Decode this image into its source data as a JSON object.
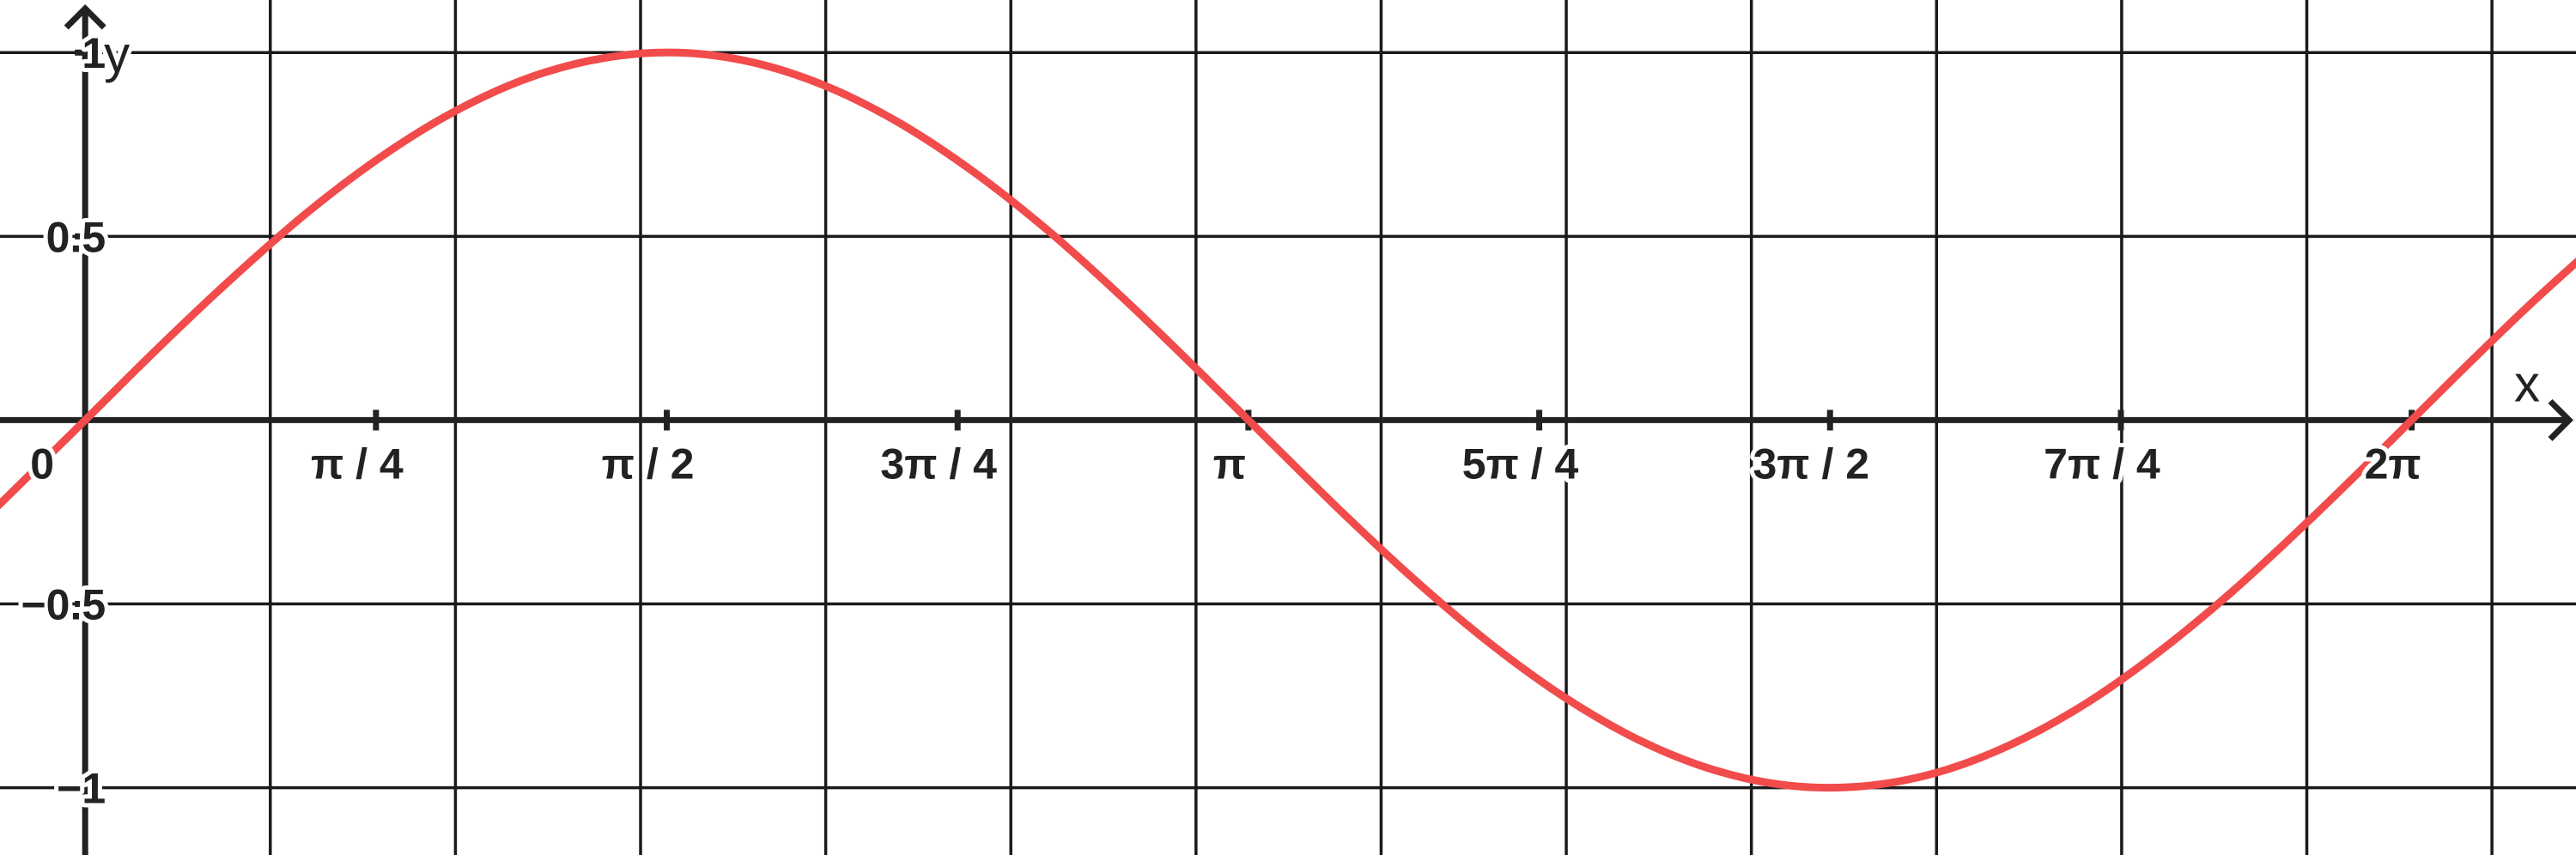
{
  "chart_data": {
    "type": "line",
    "x_label": "x",
    "y_label": "y",
    "x": [
      -0.24,
      0,
      0.2,
      0.4,
      0.6,
      0.8,
      1.0,
      1.2,
      1.4,
      1.6,
      1.8,
      2.0,
      2.2,
      2.4,
      2.6,
      2.8,
      3.0,
      3.2,
      3.4,
      3.6,
      3.8,
      4.0,
      4.2,
      4.4,
      4.6,
      4.8,
      5.0,
      5.2,
      5.4,
      5.6,
      5.8,
      6.0,
      6.2,
      6.4,
      6.6,
      6.8
    ],
    "values": [
      -0.238,
      0,
      0.199,
      0.389,
      0.565,
      0.717,
      0.841,
      0.932,
      0.985,
      1.0,
      0.974,
      0.909,
      0.808,
      0.675,
      0.516,
      0.335,
      0.141,
      -0.058,
      -0.256,
      -0.443,
      -0.612,
      -0.757,
      -0.872,
      -0.952,
      -0.994,
      -0.996,
      -0.959,
      -0.883,
      -0.773,
      -0.631,
      -0.465,
      -0.279,
      -0.083,
      0.117,
      0.312,
      0.494
    ],
    "color": "#f24b4b",
    "xlim": [
      -0.23,
      6.727
    ],
    "ylim": [
      -1.183,
      1.143
    ],
    "xticks": [
      0,
      {
        "value": 0.785398,
        "label": "π / 4"
      },
      {
        "value": 1.570796,
        "label": "π / 2"
      },
      {
        "value": 2.356194,
        "label": "3π / 4"
      },
      {
        "value": 3.141593,
        "label": "π"
      },
      {
        "value": 3.926991,
        "label": "5π / 4"
      },
      {
        "value": 4.712389,
        "label": "3π / 2"
      },
      {
        "value": 5.497787,
        "label": "7π / 4"
      },
      {
        "value": 6.283185,
        "label": "2π"
      }
    ],
    "yticks": [
      {
        "value": -1,
        "label": "−1"
      },
      {
        "value": -0.5,
        "label": "−0.5"
      },
      0.5,
      1
    ],
    "xgrid": [
      0.5,
      1.0,
      1.5,
      2.0,
      2.5,
      3.0,
      3.5,
      4.0,
      4.5,
      5.0,
      5.5,
      6.0,
      6.5
    ],
    "grid": true
  }
}
